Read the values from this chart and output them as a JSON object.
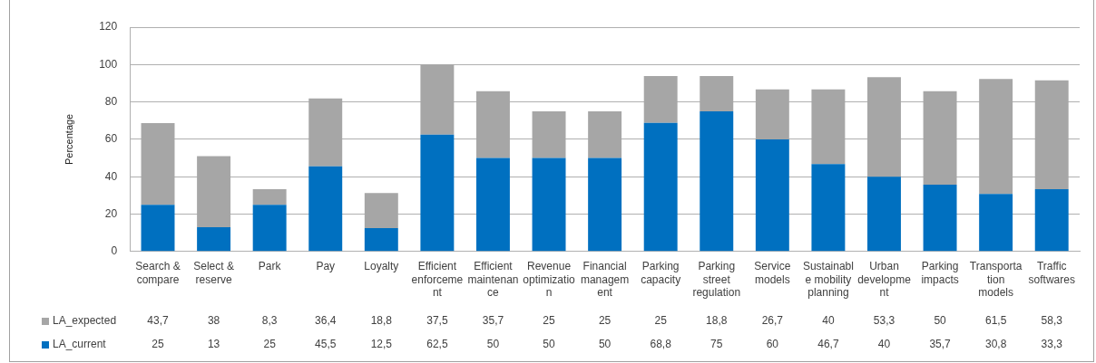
{
  "chart_data": {
    "type": "bar",
    "stacked": true,
    "ylabel": "Percentage",
    "categories": [
      "Search & compare",
      "Select & reserve",
      "Park",
      "Pay",
      "Loyalty",
      "Efficient enforcement",
      "Efficient maintenance",
      "Revenue optimization",
      "Financial management",
      "Parking capacity",
      "Parking street regulation",
      "Service models",
      "Sustainable mobility planning",
      "Urban development",
      "Parking impacts",
      "Transportation models",
      "Traffic softwares"
    ],
    "series": [
      {
        "name": "LA_current",
        "color": "#0070c0",
        "values": [
          25,
          13,
          25,
          45.5,
          12.5,
          62.5,
          50,
          50,
          50,
          68.8,
          75,
          60,
          46.7,
          40,
          35.7,
          30.8,
          33.3
        ],
        "value_labels": [
          "25",
          "13",
          "25",
          "45,5",
          "12,5",
          "62,5",
          "50",
          "50",
          "50",
          "68,8",
          "75",
          "60",
          "46,7",
          "40",
          "35,7",
          "30,8",
          "33,3"
        ]
      },
      {
        "name": "LA_expected",
        "color": "#a6a6a6",
        "values": [
          43.7,
          38,
          8.3,
          36.4,
          18.8,
          37.5,
          35.7,
          25,
          25,
          25,
          18.8,
          26.7,
          40,
          53.3,
          50,
          61.5,
          58.3
        ],
        "value_labels": [
          "43,7",
          "38",
          "8,3",
          "36,4",
          "18,8",
          "37,5",
          "35,7",
          "25",
          "25",
          "25",
          "18,8",
          "26,7",
          "40",
          "53,3",
          "50",
          "61,5",
          "58,3"
        ]
      }
    ],
    "ylim": [
      0,
      120
    ],
    "yticks": [
      0,
      20,
      40,
      60,
      80,
      100,
      120
    ],
    "grid": "y",
    "legend": "bottom"
  }
}
